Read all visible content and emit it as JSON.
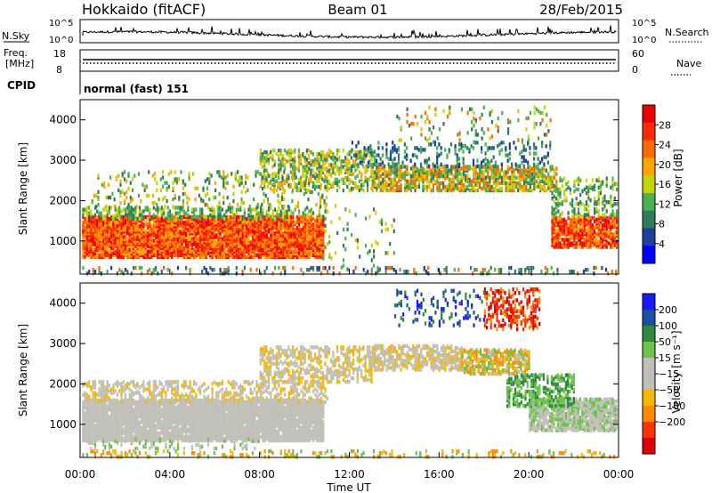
{
  "header": {
    "station": "Hokkaido (fitACF)",
    "beam": "Beam 01",
    "date": "28/Feb/2015"
  },
  "top_panels": {
    "nsky": {
      "label": "N.Sky",
      "left_ticks": [
        "10^5",
        "10^0"
      ],
      "right_ticks": [
        "10^5",
        "10^0"
      ],
      "right_label": "N.Search"
    },
    "freq": {
      "label_line1": "Freq.",
      "label_line2": "[MHz]",
      "left_ticks": [
        "18",
        "8"
      ],
      "right_ticks": [
        "60",
        "0"
      ],
      "right_label": "Nave"
    },
    "cpid": {
      "label": "CPID",
      "text": "normal (fast) 151"
    }
  },
  "colors": {
    "power": [
      "#0000ff",
      "#1f3f9f",
      "#2e7d5a",
      "#4caf50",
      "#c8d400",
      "#ffa500",
      "#ff6a00",
      "#ff2a00",
      "#ee0000"
    ],
    "velocity": [
      "#1a1aff",
      "#1e4fa8",
      "#2f8b3d",
      "#6cc24a",
      "#c0c0b8",
      "#c0c0b8",
      "#f5b800",
      "#ff8c00",
      "#ff3300",
      "#e00000"
    ]
  },
  "chart_data": [
    {
      "type": "heatmap",
      "name": "power",
      "ylabel": "Slant Range [km]",
      "yticks": [
        "4000",
        "3000",
        "2000",
        "1000"
      ],
      "ylim": [
        180,
        4500
      ],
      "xlim": [
        "00:00",
        "24:00"
      ],
      "colorbar": {
        "label": "Power [dB]",
        "ticks": [
          "28",
          "24",
          "20",
          "16",
          "12",
          "8",
          "4"
        ],
        "range": [
          0,
          32
        ]
      },
      "regions": [
        {
          "t": [
            0,
            10.8
          ],
          "range_km": [
            700,
            1600
          ],
          "value_db": 24
        },
        {
          "t": [
            13,
            21
          ],
          "range_km": [
            2300,
            2900
          ],
          "value_db": 16
        },
        {
          "t": [
            21,
            24
          ],
          "range_km": [
            900,
            1600
          ],
          "value_db": 22
        },
        {
          "t": [
            9,
            12
          ],
          "range_km": [
            2000,
            3000
          ],
          "value_db": 14
        }
      ]
    },
    {
      "type": "heatmap",
      "name": "velocity",
      "ylabel": "Slant Range [km]",
      "yticks": [
        "4000",
        "3000",
        "2000",
        "1000"
      ],
      "ylim": [
        180,
        4500
      ],
      "xlim": [
        "00:00",
        "24:00"
      ],
      "xticks": [
        "00:00",
        "04:00",
        "08:00",
        "12:00",
        "16:00",
        "20:00",
        "00:00"
      ],
      "xlabel": "Time UT",
      "colorbar": {
        "label": "Velocity [m s⁻¹]",
        "ticks": [
          "200",
          "100",
          "50",
          "15",
          "−15",
          "−50",
          "−100",
          "−200"
        ]
      },
      "regions": [
        {
          "t": [
            0,
            10.5
          ],
          "range_km": [
            700,
            1600
          ],
          "value_ms": 0
        },
        {
          "t": [
            17,
            20
          ],
          "range_km": [
            2400,
            3000
          ],
          "value_ms": -60
        },
        {
          "t": [
            18,
            20.5
          ],
          "range_km": [
            3400,
            4400
          ],
          "value_ms": -200
        }
      ]
    }
  ]
}
